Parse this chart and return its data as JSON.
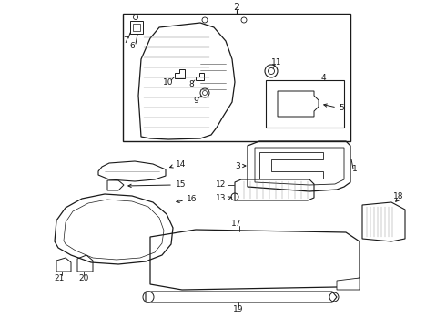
{
  "bg": "#ffffff",
  "lc": "#1a1a1a",
  "fig_width": 4.9,
  "fig_height": 3.6,
  "dpi": 100
}
